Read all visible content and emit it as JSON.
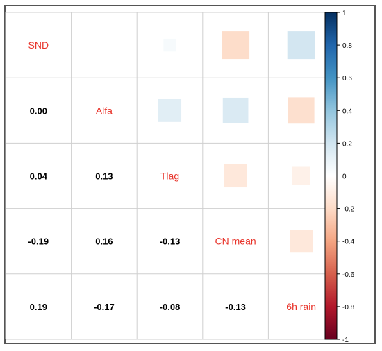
{
  "chart_data": {
    "type": "heatmap",
    "variables": [
      "SND",
      "Alfa",
      "Tlag",
      "CN mean",
      "6h rain"
    ],
    "matrix": [
      [
        1.0,
        0.0,
        0.04,
        -0.19,
        0.19
      ],
      [
        0.0,
        1.0,
        0.13,
        0.16,
        -0.17
      ],
      [
        0.04,
        0.13,
        1.0,
        -0.13,
        -0.08
      ],
      [
        -0.19,
        0.16,
        -0.13,
        1.0,
        -0.13
      ],
      [
        0.19,
        -0.17,
        -0.08,
        -0.13,
        1.0
      ]
    ],
    "lower_labels": [
      [],
      [
        "0.00"
      ],
      [
        "0.04",
        "0.13"
      ],
      [
        "-0.19",
        "0.16",
        "-0.13"
      ],
      [
        "0.19",
        "-0.17",
        "-0.08",
        "-0.13"
      ]
    ],
    "upper_style": "square",
    "lower_style": "number",
    "diagonal_style": "label",
    "colorbar": {
      "range": [
        -1,
        1
      ],
      "ticks": [
        "1",
        "0.8",
        "0.6",
        "0.4",
        "0.2",
        "0",
        "-0.2",
        "-0.4",
        "-0.6",
        "-0.8",
        "-1"
      ],
      "colors": [
        "#67001F",
        "#B2182B",
        "#D6604D",
        "#F4A582",
        "#FDDBC7",
        "#FFFFFF",
        "#D1E5F0",
        "#92C5DE",
        "#4393C3",
        "#2166AC",
        "#053061"
      ]
    },
    "label_color": "#E8332A",
    "number_color": "#000000",
    "grid": true
  }
}
